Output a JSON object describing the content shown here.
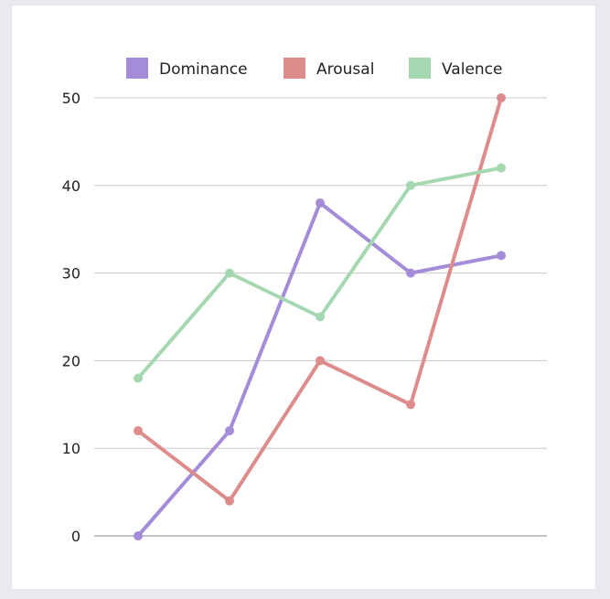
{
  "chart_data": {
    "type": "line",
    "title": "",
    "xlabel": "",
    "ylabel": "",
    "x": [
      1,
      2,
      3,
      4,
      5
    ],
    "ylim": [
      0,
      50
    ],
    "yticks": [
      "0",
      "10",
      "20",
      "30",
      "40",
      "50"
    ],
    "grid": true,
    "legend": "top",
    "series": [
      {
        "name": "Dominance",
        "color": "#a58cd8",
        "values": [
          0,
          12,
          38,
          30,
          32
        ]
      },
      {
        "name": "Arousal",
        "color": "#de8b8b",
        "values": [
          12,
          4,
          20,
          15,
          50
        ]
      },
      {
        "name": "Valence",
        "color": "#a5d8b0",
        "values": [
          18,
          30,
          25,
          40,
          42
        ]
      }
    ]
  }
}
